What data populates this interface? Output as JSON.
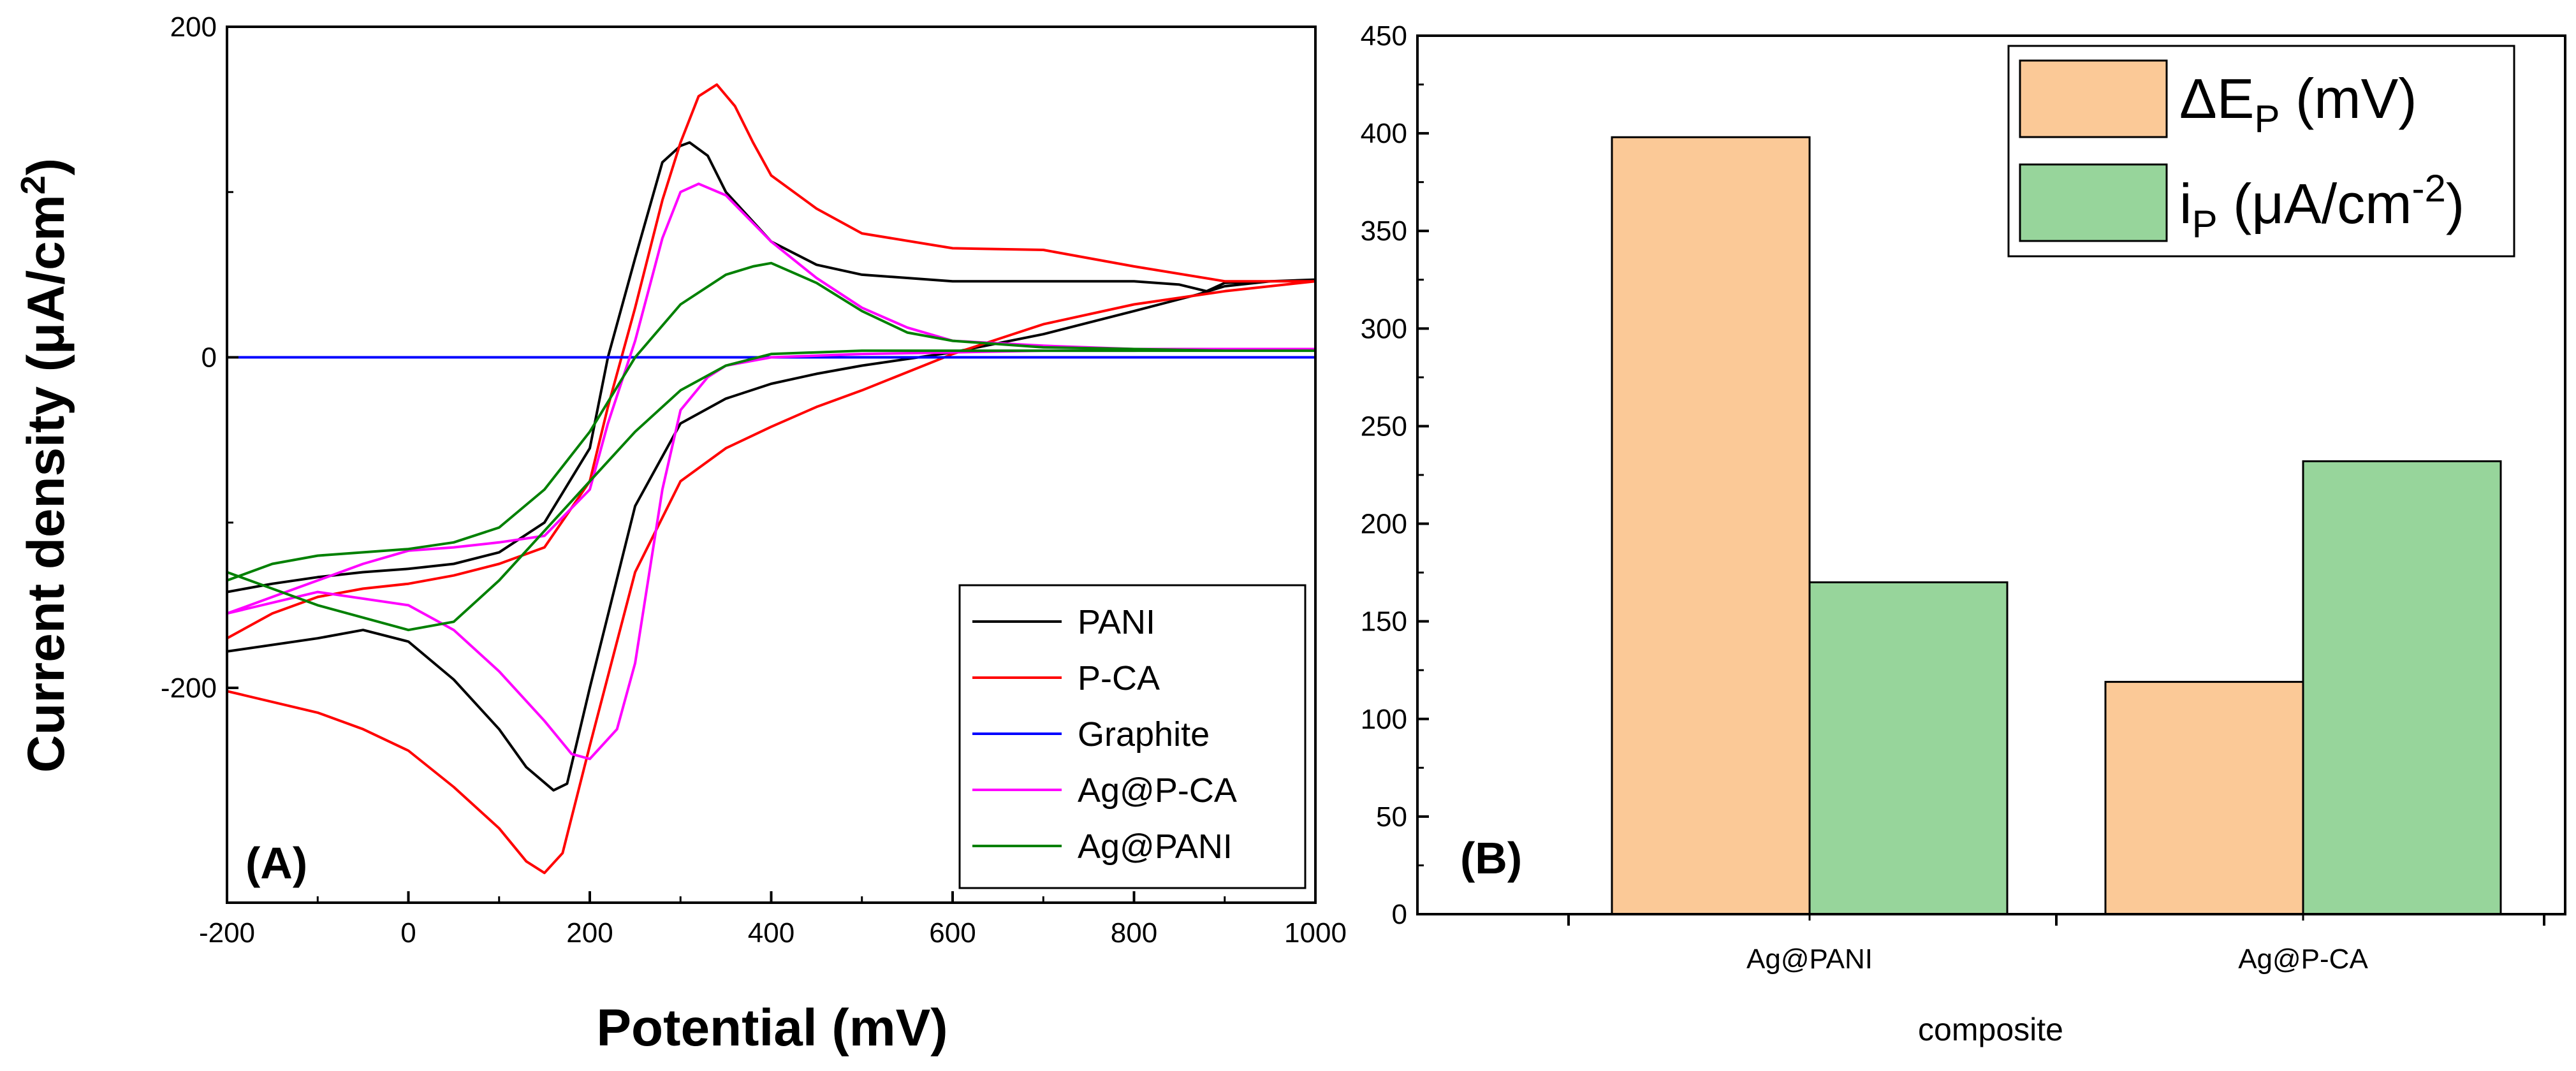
{
  "chart_data": [
    {
      "type": "line",
      "panel_label": "(A)",
      "xlabel": "Potential (mV)",
      "ylabel": "Current density (μA/cm",
      "ylabel_sup": "2",
      "ylabel_end": ")",
      "xlim": [
        -200,
        1000
      ],
      "ylim": [
        -330,
        200
      ],
      "xticks": [
        -200,
        0,
        200,
        400,
        600,
        800,
        1000
      ],
      "yticks": [
        -200,
        0,
        200
      ],
      "legend_position": "bottom-right",
      "series": [
        {
          "name": "PANI",
          "color": "#000000",
          "x": [
            -200,
            -100,
            -50,
            0,
            50,
            100,
            130,
            160,
            175,
            200,
            250,
            300,
            350,
            400,
            450,
            500,
            600,
            700,
            800,
            870,
            900,
            950,
            1000,
            950,
            900,
            880,
            850,
            800,
            700,
            600,
            500,
            450,
            400,
            350,
            330,
            310,
            300,
            280,
            250,
            220,
            200,
            150,
            100,
            50,
            0,
            -50,
            -100,
            -150,
            -200
          ],
          "y": [
            -178,
            -170,
            -165,
            -172,
            -195,
            -225,
            -248,
            -262,
            -258,
            -200,
            -90,
            -40,
            -25,
            -16,
            -10,
            -5,
            3,
            14,
            28,
            38,
            43,
            46,
            47,
            46,
            45,
            40,
            44,
            46,
            46,
            46,
            50,
            56,
            70,
            100,
            122,
            130,
            128,
            118,
            60,
            0,
            -55,
            -100,
            -118,
            -125,
            -128,
            -130,
            -133,
            -137,
            -142
          ]
        },
        {
          "name": "P-CA",
          "color": "#ff0000",
          "x": [
            -200,
            -100,
            -50,
            0,
            50,
            100,
            130,
            150,
            170,
            200,
            250,
            300,
            350,
            400,
            450,
            500,
            600,
            700,
            800,
            900,
            1000,
            950,
            900,
            800,
            700,
            600,
            500,
            450,
            400,
            380,
            360,
            340,
            320,
            300,
            280,
            250,
            220,
            200,
            150,
            100,
            50,
            0,
            -50,
            -100,
            -150,
            -200
          ],
          "y": [
            -202,
            -215,
            -225,
            -238,
            -260,
            -285,
            -305,
            -312,
            -300,
            -235,
            -130,
            -75,
            -55,
            -42,
            -30,
            -20,
            2,
            20,
            32,
            40,
            46,
            46,
            46,
            55,
            65,
            66,
            75,
            90,
            110,
            130,
            152,
            165,
            158,
            130,
            95,
            30,
            -30,
            -75,
            -115,
            -125,
            -132,
            -137,
            -140,
            -145,
            -155,
            -170
          ]
        },
        {
          "name": "Graphite",
          "color": "#0000ff",
          "x": [
            -200,
            1000
          ],
          "y": [
            0,
            0
          ]
        },
        {
          "name": "Ag@P-CA",
          "color": "#ff00ff",
          "x": [
            -200,
            -100,
            0,
            50,
            100,
            150,
            180,
            200,
            230,
            250,
            280,
            300,
            330,
            350,
            400,
            500,
            600,
            700,
            800,
            900,
            1000,
            900,
            800,
            700,
            600,
            550,
            500,
            450,
            400,
            350,
            320,
            300,
            280,
            250,
            220,
            200,
            150,
            100,
            50,
            0,
            -50,
            -100,
            -150,
            -200
          ],
          "y": [
            -155,
            -142,
            -150,
            -165,
            -190,
            -220,
            -240,
            -243,
            -225,
            -185,
            -80,
            -32,
            -12,
            -5,
            0,
            2,
            3,
            4,
            4,
            5,
            5,
            5,
            5,
            7,
            10,
            18,
            30,
            48,
            70,
            98,
            105,
            100,
            72,
            10,
            -40,
            -80,
            -108,
            -112,
            -115,
            -117,
            -125,
            -135,
            -145,
            -155
          ]
        },
        {
          "name": "Ag@PANI",
          "color": "#008000",
          "x": [
            -200,
            -100,
            0,
            50,
            100,
            150,
            200,
            250,
            300,
            350,
            400,
            450,
            500,
            600,
            700,
            800,
            900,
            1000,
            900,
            800,
            700,
            600,
            550,
            500,
            450,
            400,
            380,
            350,
            300,
            250,
            200,
            150,
            100,
            50,
            0,
            -50,
            -100,
            -150,
            -200
          ],
          "y": [
            -130,
            -150,
            -165,
            -160,
            -135,
            -105,
            -75,
            -45,
            -20,
            -5,
            2,
            3,
            4,
            4,
            4,
            4,
            4,
            4,
            4,
            5,
            6,
            10,
            15,
            28,
            45,
            57,
            55,
            50,
            32,
            0,
            -45,
            -80,
            -103,
            -112,
            -116,
            -118,
            -120,
            -125,
            -135
          ]
        }
      ]
    },
    {
      "type": "bar",
      "panel_label": "(B)",
      "xlabel": "composite",
      "ylabel": "",
      "categories": [
        "Ag@PANI",
        "Ag@P-CA"
      ],
      "ylim": [
        0,
        450
      ],
      "yticks": [
        0,
        50,
        100,
        150,
        200,
        250,
        300,
        350,
        400,
        450
      ],
      "legend_position": "top-right",
      "series": [
        {
          "name": "ΔE",
          "sub": "P",
          "unit": " (mV)",
          "color": "#fbc997",
          "values": [
            398,
            119
          ]
        },
        {
          "name": "i",
          "sub": "P",
          "unit_pre": " (μA/cm",
          "unit_sup": "-2",
          "unit_post": ")",
          "color": "#97d59b",
          "values": [
            170,
            232
          ]
        }
      ]
    }
  ]
}
